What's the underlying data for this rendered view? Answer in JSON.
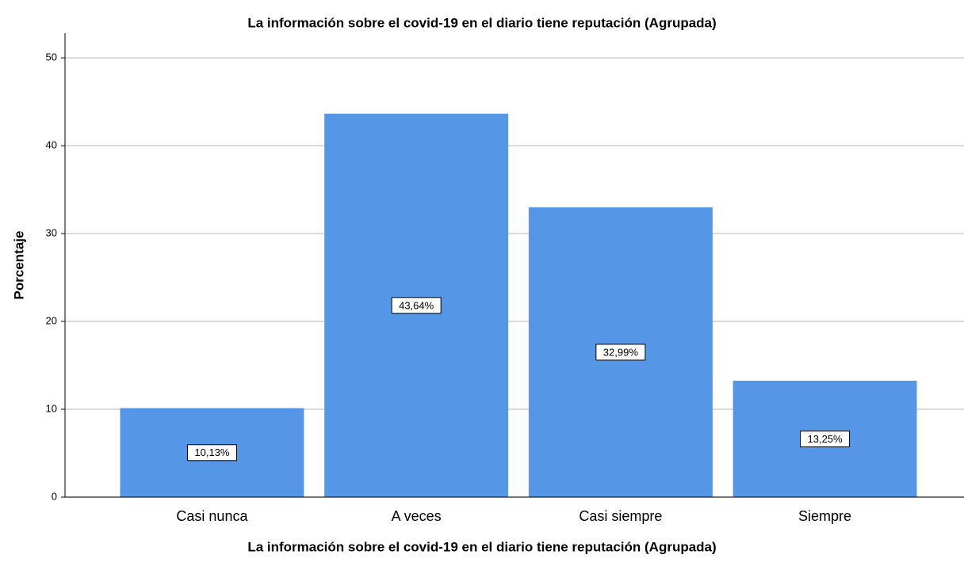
{
  "chart_data": {
    "type": "bar",
    "title": "La información sobre el covid-19 en el diario tiene reputación (Agrupada)",
    "xlabel": "La información sobre el covid-19 en el diario tiene reputación (Agrupada)",
    "ylabel": "Porcentaje",
    "categories": [
      "Casi nunca",
      "A veces",
      "Casi siempre",
      "Siempre"
    ],
    "values": [
      10.13,
      43.64,
      32.99,
      13.25
    ],
    "value_labels": [
      "10,13%",
      "43,64%",
      "32,99%",
      "13,25%"
    ],
    "color": "#5596e6",
    "ylim": [
      0,
      52.8
    ],
    "yticks": [
      0,
      10,
      20,
      30,
      40,
      50
    ],
    "grid": true
  }
}
